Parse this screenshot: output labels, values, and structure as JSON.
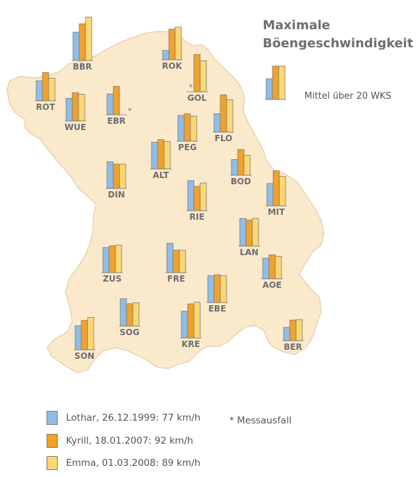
{
  "title": [
    "Maximale",
    "Böengeschwindigkeit"
  ],
  "reference_label": "Mittel über 20 WKS",
  "footnote": "* Messausfall",
  "colors": {
    "map_fill": "#fbe9cc",
    "map_stroke": "#e6d3b2",
    "bar_stroke": "#7a7a7a",
    "lothar": "#8fbde6",
    "kyrill": "#f2a12a",
    "emma": "#fbd874",
    "label": "#6d6e70"
  },
  "legend": [
    {
      "key": "lothar",
      "text": "Lothar, 26.12.1999: 77 km/h"
    },
    {
      "key": "kyrill",
      "text": "Kyrill, 18.01.2007: 92 km/h"
    },
    {
      "key": "emma",
      "text": "Emma, 01.03.2008: 89 km/h"
    }
  ],
  "chart_data": {
    "type": "bar",
    "series": [
      {
        "name": "Lothar, 26.12.1999: 77 km/h",
        "key": "lothar"
      },
      {
        "name": "Kyrill, 18.01.2007: 92 km/h",
        "key": "kyrill"
      },
      {
        "name": "Emma, 01.03.2008: 89 km/h",
        "key": "emma"
      }
    ],
    "unit": "relative to mean over 20 stations (reference = 1.0)",
    "reference": [
      0.62,
      1.0,
      1.0
    ],
    "stations": [
      {
        "code": "BBR",
        "values": [
          0.85,
          1.1,
          1.3
        ]
      },
      {
        "code": "ROK",
        "values": [
          0.28,
          0.92,
          0.98
        ]
      },
      {
        "code": "ROT",
        "values": [
          0.6,
          0.85,
          0.68
        ]
      },
      {
        "code": "GOL",
        "values": [
          null,
          1.12,
          0.93
        ],
        "note": "*"
      },
      {
        "code": "WUE",
        "values": [
          0.68,
          0.85,
          0.8
        ]
      },
      {
        "code": "EBR",
        "values": [
          0.62,
          0.85,
          null
        ],
        "note": "*"
      },
      {
        "code": "FLO",
        "values": [
          0.55,
          1.12,
          0.97
        ]
      },
      {
        "code": "PEG",
        "values": [
          0.77,
          0.82,
          0.75
        ]
      },
      {
        "code": "ALT",
        "values": [
          0.8,
          0.88,
          0.82
        ]
      },
      {
        "code": "BOD",
        "values": [
          0.47,
          0.77,
          0.6
        ]
      },
      {
        "code": "DIN",
        "values": [
          0.8,
          0.73,
          0.73
        ]
      },
      {
        "code": "MIT",
        "values": [
          0.67,
          1.05,
          0.88
        ]
      },
      {
        "code": "RIE",
        "values": [
          0.9,
          0.73,
          0.83
        ]
      },
      {
        "code": "LAN",
        "values": [
          0.83,
          0.78,
          0.83
        ]
      },
      {
        "code": "ZUS",
        "values": [
          0.75,
          0.8,
          0.82
        ]
      },
      {
        "code": "FRE",
        "values": [
          0.88,
          0.67,
          0.67
        ]
      },
      {
        "code": "AOE",
        "values": [
          0.62,
          0.72,
          0.68
        ]
      },
      {
        "code": "EBE",
        "values": [
          0.8,
          0.83,
          0.8
        ]
      },
      {
        "code": "SOG",
        "values": [
          0.82,
          0.67,
          0.7
        ]
      },
      {
        "code": "KRE",
        "values": [
          0.8,
          1.02,
          1.07
        ]
      },
      {
        "code": "SON",
        "values": [
          0.72,
          0.88,
          0.97
        ]
      },
      {
        "code": "BER",
        "values": [
          0.4,
          0.62,
          0.63
        ]
      }
    ]
  }
}
